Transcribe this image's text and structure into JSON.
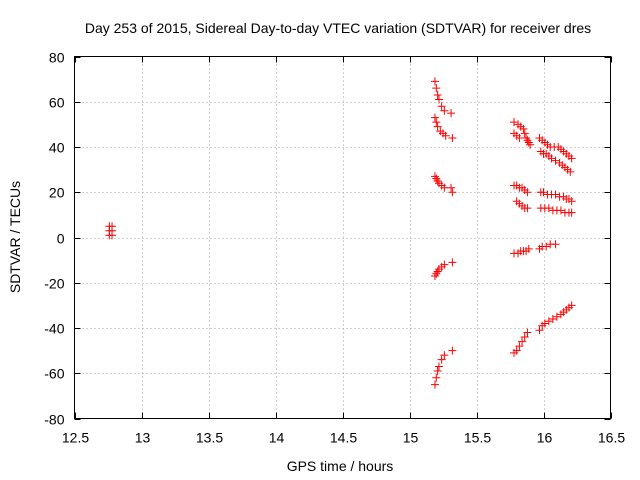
{
  "chart_data": {
    "type": "scatter",
    "title": "Day 253 of 2015, Sidereal Day-to-day VTEC variation (SDTVAR) for receiver dres",
    "xlabel": "GPS time / hours",
    "ylabel": "SDTVAR / TECUs",
    "xlim": [
      12.5,
      16.5
    ],
    "ylim": [
      -80,
      80
    ],
    "xticks": [
      12.5,
      13,
      13.5,
      14,
      14.5,
      15,
      15.5,
      16,
      16.5
    ],
    "xtick_labels": [
      "12.5",
      "13",
      "13.5",
      "14",
      "14.5",
      "15",
      "15.5",
      "16",
      "16.5"
    ],
    "yticks": [
      -80,
      -60,
      -40,
      -20,
      0,
      20,
      40,
      60,
      80
    ],
    "ytick_labels": [
      "-80",
      "-60",
      "-40",
      "-20",
      "0",
      "20",
      "40",
      "60",
      "80"
    ],
    "grid": true,
    "marker": "+",
    "color": "#ff0000",
    "points": [
      [
        12.76,
        5
      ],
      [
        12.78,
        5
      ],
      [
        12.76,
        3
      ],
      [
        12.78,
        3
      ],
      [
        12.76,
        1
      ],
      [
        12.78,
        1
      ],
      [
        15.19,
        69
      ],
      [
        15.2,
        66
      ],
      [
        15.21,
        63
      ],
      [
        15.22,
        61
      ],
      [
        15.24,
        58
      ],
      [
        15.26,
        56
      ],
      [
        15.31,
        55
      ],
      [
        15.19,
        53
      ],
      [
        15.2,
        51
      ],
      [
        15.21,
        49
      ],
      [
        15.23,
        47
      ],
      [
        15.25,
        46
      ],
      [
        15.27,
        45
      ],
      [
        15.32,
        44
      ],
      [
        15.19,
        27
      ],
      [
        15.2,
        26
      ],
      [
        15.21,
        25
      ],
      [
        15.22,
        24
      ],
      [
        15.24,
        23
      ],
      [
        15.26,
        22
      ],
      [
        15.31,
        22
      ],
      [
        15.32,
        20
      ],
      [
        15.19,
        -17
      ],
      [
        15.2,
        -16
      ],
      [
        15.21,
        -15
      ],
      [
        15.22,
        -14
      ],
      [
        15.24,
        -13
      ],
      [
        15.26,
        -12
      ],
      [
        15.32,
        -11
      ],
      [
        15.19,
        -65
      ],
      [
        15.2,
        -62
      ],
      [
        15.21,
        -59
      ],
      [
        15.22,
        -57
      ],
      [
        15.24,
        -54
      ],
      [
        15.26,
        -52
      ],
      [
        15.32,
        -50
      ],
      [
        15.78,
        51
      ],
      [
        15.81,
        50
      ],
      [
        15.83,
        49
      ],
      [
        15.85,
        48
      ],
      [
        15.86,
        46
      ],
      [
        15.87,
        44
      ],
      [
        15.88,
        43
      ],
      [
        15.89,
        42
      ],
      [
        15.9,
        41
      ],
      [
        15.78,
        46
      ],
      [
        15.8,
        45
      ],
      [
        15.82,
        44
      ],
      [
        15.78,
        23
      ],
      [
        15.8,
        23
      ],
      [
        15.82,
        22
      ],
      [
        15.84,
        22
      ],
      [
        15.86,
        21
      ],
      [
        15.88,
        20
      ],
      [
        15.8,
        16
      ],
      [
        15.82,
        15
      ],
      [
        15.84,
        14
      ],
      [
        15.86,
        13
      ],
      [
        15.88,
        13
      ],
      [
        15.78,
        -7
      ],
      [
        15.81,
        -7
      ],
      [
        15.83,
        -6
      ],
      [
        15.85,
        -6
      ],
      [
        15.87,
        -6
      ],
      [
        15.89,
        -5
      ],
      [
        15.78,
        -51
      ],
      [
        15.8,
        -50
      ],
      [
        15.82,
        -48
      ],
      [
        15.84,
        -46
      ],
      [
        15.86,
        -44
      ],
      [
        15.88,
        -42
      ],
      [
        15.97,
        44
      ],
      [
        15.99,
        43
      ],
      [
        16.01,
        42
      ],
      [
        16.03,
        41
      ],
      [
        16.05,
        40
      ],
      [
        16.08,
        40
      ],
      [
        16.11,
        40
      ],
      [
        16.13,
        39
      ],
      [
        16.15,
        38
      ],
      [
        16.17,
        37
      ],
      [
        16.19,
        36
      ],
      [
        16.21,
        35
      ],
      [
        15.98,
        38
      ],
      [
        16.0,
        37
      ],
      [
        16.02,
        37
      ],
      [
        16.04,
        36
      ],
      [
        16.06,
        35
      ],
      [
        16.09,
        34
      ],
      [
        16.12,
        33
      ],
      [
        16.14,
        32
      ],
      [
        16.16,
        31
      ],
      [
        16.18,
        30
      ],
      [
        16.2,
        29
      ],
      [
        15.98,
        20
      ],
      [
        16.0,
        20
      ],
      [
        16.03,
        19
      ],
      [
        16.06,
        19
      ],
      [
        16.09,
        19
      ],
      [
        16.12,
        18
      ],
      [
        16.15,
        18
      ],
      [
        16.17,
        17
      ],
      [
        16.19,
        17
      ],
      [
        16.21,
        16
      ],
      [
        15.98,
        13
      ],
      [
        16.01,
        13
      ],
      [
        16.04,
        13
      ],
      [
        16.07,
        12
      ],
      [
        16.1,
        12
      ],
      [
        16.13,
        12
      ],
      [
        16.16,
        11
      ],
      [
        16.19,
        11
      ],
      [
        16.21,
        11
      ],
      [
        15.97,
        -5
      ],
      [
        15.99,
        -4
      ],
      [
        16.02,
        -4
      ],
      [
        16.05,
        -3
      ],
      [
        16.09,
        -3
      ],
      [
        15.97,
        -41
      ],
      [
        15.99,
        -39
      ],
      [
        16.01,
        -38
      ],
      [
        16.04,
        -37
      ],
      [
        16.07,
        -36
      ],
      [
        16.1,
        -35
      ],
      [
        16.13,
        -34
      ],
      [
        16.15,
        -33
      ],
      [
        16.17,
        -32
      ],
      [
        16.19,
        -31
      ],
      [
        16.21,
        -30
      ]
    ]
  }
}
